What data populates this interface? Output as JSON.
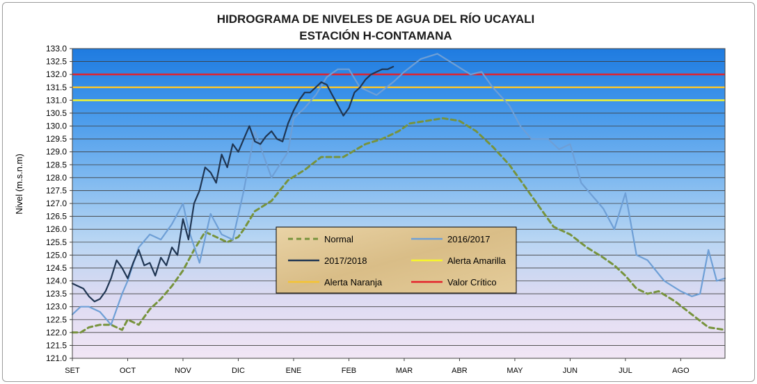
{
  "chart_data": {
    "type": "line",
    "title": "HIDROGRAMA DE NIVELES DE AGUA DEL RÍO UCAYALI",
    "subtitle": "ESTACIÓN  H-CONTAMANA",
    "ylabel": "Nivel (m.s.n.m)",
    "ylim": [
      121.0,
      133.0
    ],
    "ystep": 0.5,
    "ytick_labels": [
      "121.0",
      "121.5",
      "122.0",
      "122.5",
      "123.0",
      "123.5",
      "124.0",
      "124.5",
      "125.0",
      "125.5",
      "126.0",
      "126.5",
      "127.0",
      "127.5",
      "128.0",
      "128.5",
      "129.0",
      "129.5",
      "130.0",
      "130.5",
      "131.0",
      "131.5",
      "132.0",
      "132.5",
      "133.0"
    ],
    "x_unit": "month index (0 = start of SET)",
    "xlim": [
      0,
      11.8
    ],
    "month_labels": [
      "SET",
      "OCT",
      "NOV",
      "DIC",
      "ENE",
      "FEB",
      "MAR",
      "ABR",
      "MAY",
      "JUN",
      "JUL",
      "AGO"
    ],
    "grid": true,
    "legend_position": "center",
    "colors": {
      "normal": "#77933c",
      "y2016": "#6e9fd6",
      "y2017": "#1f3552",
      "amarilla": "#f7f72a",
      "naranja": "#f5c431",
      "critico": "#e4202a"
    },
    "series": [
      {
        "name": "Normal",
        "style": "dashed",
        "x": [
          0,
          0.15,
          0.3,
          0.5,
          0.7,
          0.9,
          1.0,
          1.2,
          1.3,
          1.4,
          1.6,
          1.8,
          2.0,
          2.2,
          2.4,
          2.6,
          2.8,
          3.0,
          3.1,
          3.3,
          3.6,
          3.9,
          4.2,
          4.5,
          4.9,
          5.3,
          5.6,
          5.9,
          6.1,
          6.4,
          6.7,
          7.0,
          7.3,
          7.6,
          7.9,
          8.1,
          8.4,
          8.7,
          9.0,
          9.3,
          9.6,
          9.8,
          10.0,
          10.2,
          10.4,
          10.6,
          10.9,
          11.2,
          11.5,
          11.8
        ],
        "y": [
          122.0,
          122.0,
          122.2,
          122.3,
          122.3,
          122.1,
          122.5,
          122.3,
          122.6,
          122.9,
          123.3,
          123.8,
          124.4,
          125.2,
          125.9,
          125.7,
          125.5,
          125.7,
          126.0,
          126.7,
          127.1,
          127.9,
          128.3,
          128.8,
          128.8,
          129.3,
          129.5,
          129.8,
          130.1,
          130.2,
          130.3,
          130.2,
          129.8,
          129.2,
          128.5,
          127.9,
          127.0,
          126.1,
          125.8,
          125.3,
          124.9,
          124.6,
          124.2,
          123.7,
          123.5,
          123.6,
          123.2,
          122.7,
          122.2,
          122.1
        ]
      },
      {
        "name": "2016/2017",
        "style": "solid",
        "x": [
          0,
          0.15,
          0.3,
          0.5,
          0.7,
          0.9,
          1.0,
          1.2,
          1.4,
          1.6,
          1.8,
          2.0,
          2.1,
          2.3,
          2.5,
          2.7,
          2.9,
          3.1,
          3.3,
          3.6,
          3.9,
          4.0,
          4.2,
          4.4,
          4.6,
          4.8,
          5.0,
          5.2,
          5.5,
          5.8,
          6.0,
          6.3,
          6.6,
          6.9,
          7.2,
          7.4,
          7.6,
          7.9,
          8.1,
          8.3,
          8.6,
          8.8,
          9.0,
          9.2,
          9.4,
          9.6,
          9.8,
          10.0,
          10.2,
          10.4,
          10.7,
          11.0,
          11.2,
          11.35,
          11.5,
          11.65,
          11.8
        ],
        "y": [
          122.7,
          123.0,
          123.0,
          122.8,
          122.3,
          123.5,
          124.0,
          125.3,
          125.8,
          125.6,
          126.2,
          127.0,
          126.0,
          124.7,
          126.6,
          125.8,
          125.6,
          127.5,
          129.8,
          128.0,
          129.0,
          130.3,
          130.7,
          131.2,
          131.9,
          132.2,
          132.2,
          131.5,
          131.2,
          131.7,
          132.1,
          132.6,
          132.8,
          132.4,
          132.0,
          132.1,
          131.5,
          130.8,
          130.0,
          129.5,
          129.5,
          129.1,
          129.3,
          127.8,
          127.3,
          126.8,
          126.0,
          127.4,
          125.0,
          124.8,
          124.0,
          123.6,
          123.4,
          123.5,
          125.2,
          124.0,
          124.1
        ]
      },
      {
        "name": "2017/2018",
        "style": "solid",
        "x": [
          0,
          0.2,
          0.3,
          0.4,
          0.5,
          0.6,
          0.7,
          0.8,
          0.9,
          1.0,
          1.1,
          1.2,
          1.3,
          1.4,
          1.5,
          1.6,
          1.7,
          1.8,
          1.9,
          2.0,
          2.1,
          2.2,
          2.3,
          2.4,
          2.5,
          2.6,
          2.7,
          2.8,
          2.9,
          3.0,
          3.1,
          3.2,
          3.3,
          3.4,
          3.5,
          3.6,
          3.7,
          3.8,
          3.9,
          4.0,
          4.1,
          4.2,
          4.3,
          4.4,
          4.5,
          4.6,
          4.7,
          4.8,
          4.9,
          5.0,
          5.1,
          5.2,
          5.3,
          5.4,
          5.5,
          5.6,
          5.7,
          5.8
        ],
        "y": [
          123.9,
          123.7,
          123.4,
          123.2,
          123.3,
          123.6,
          124.1,
          124.8,
          124.5,
          124.1,
          124.7,
          125.2,
          124.6,
          124.7,
          124.2,
          124.9,
          124.6,
          125.3,
          125.0,
          126.4,
          125.6,
          127.0,
          127.5,
          128.4,
          128.2,
          127.8,
          128.9,
          128.4,
          129.3,
          129.0,
          129.5,
          130.0,
          129.4,
          129.3,
          129.6,
          129.8,
          129.5,
          129.4,
          130.1,
          130.6,
          131.0,
          131.3,
          131.3,
          131.5,
          131.7,
          131.6,
          131.2,
          130.8,
          130.4,
          130.7,
          131.3,
          131.5,
          131.8,
          132.0,
          132.1,
          132.2,
          132.2,
          132.3
        ]
      }
    ],
    "thresholds": [
      {
        "name": "Alerta Amarilla",
        "value": 131.0
      },
      {
        "name": "Alerta Naranja",
        "value": 131.5
      },
      {
        "name": "Valor Crítico",
        "value": 132.0
      }
    ],
    "legend": [
      {
        "label": "Normal",
        "key": "normal",
        "style": "dashed"
      },
      {
        "label": "2016/2017",
        "key": "y2016",
        "style": "solid"
      },
      {
        "label": "2017/2018",
        "key": "y2017",
        "style": "solid"
      },
      {
        "label": "Alerta Amarilla",
        "key": "amarilla",
        "style": "solid"
      },
      {
        "label": "Alerta Naranja",
        "key": "naranja",
        "style": "solid"
      },
      {
        "label": "Valor Crítico",
        "key": "critico",
        "style": "solid"
      }
    ]
  }
}
